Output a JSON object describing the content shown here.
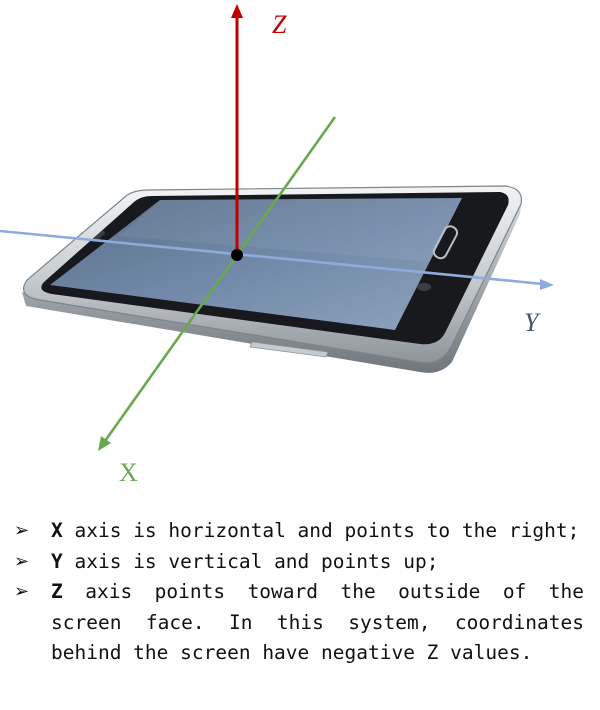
{
  "axes": {
    "x": {
      "label": "X",
      "color": "#6aa84f"
    },
    "y": {
      "label": "Y",
      "color": "#8faadc"
    },
    "z": {
      "label": "Z",
      "color": "#c00000"
    }
  },
  "bullet_marker": "➢",
  "notes": [
    {
      "key": "X",
      "text": " axis is horizontal and points to the right;"
    },
    {
      "key": "Y",
      "text": " axis is vertical and points up;"
    },
    {
      "key": "Z",
      "text": " axis points toward the outside of the screen face. In this system, coordinates behind the screen have negative Z values."
    }
  ]
}
